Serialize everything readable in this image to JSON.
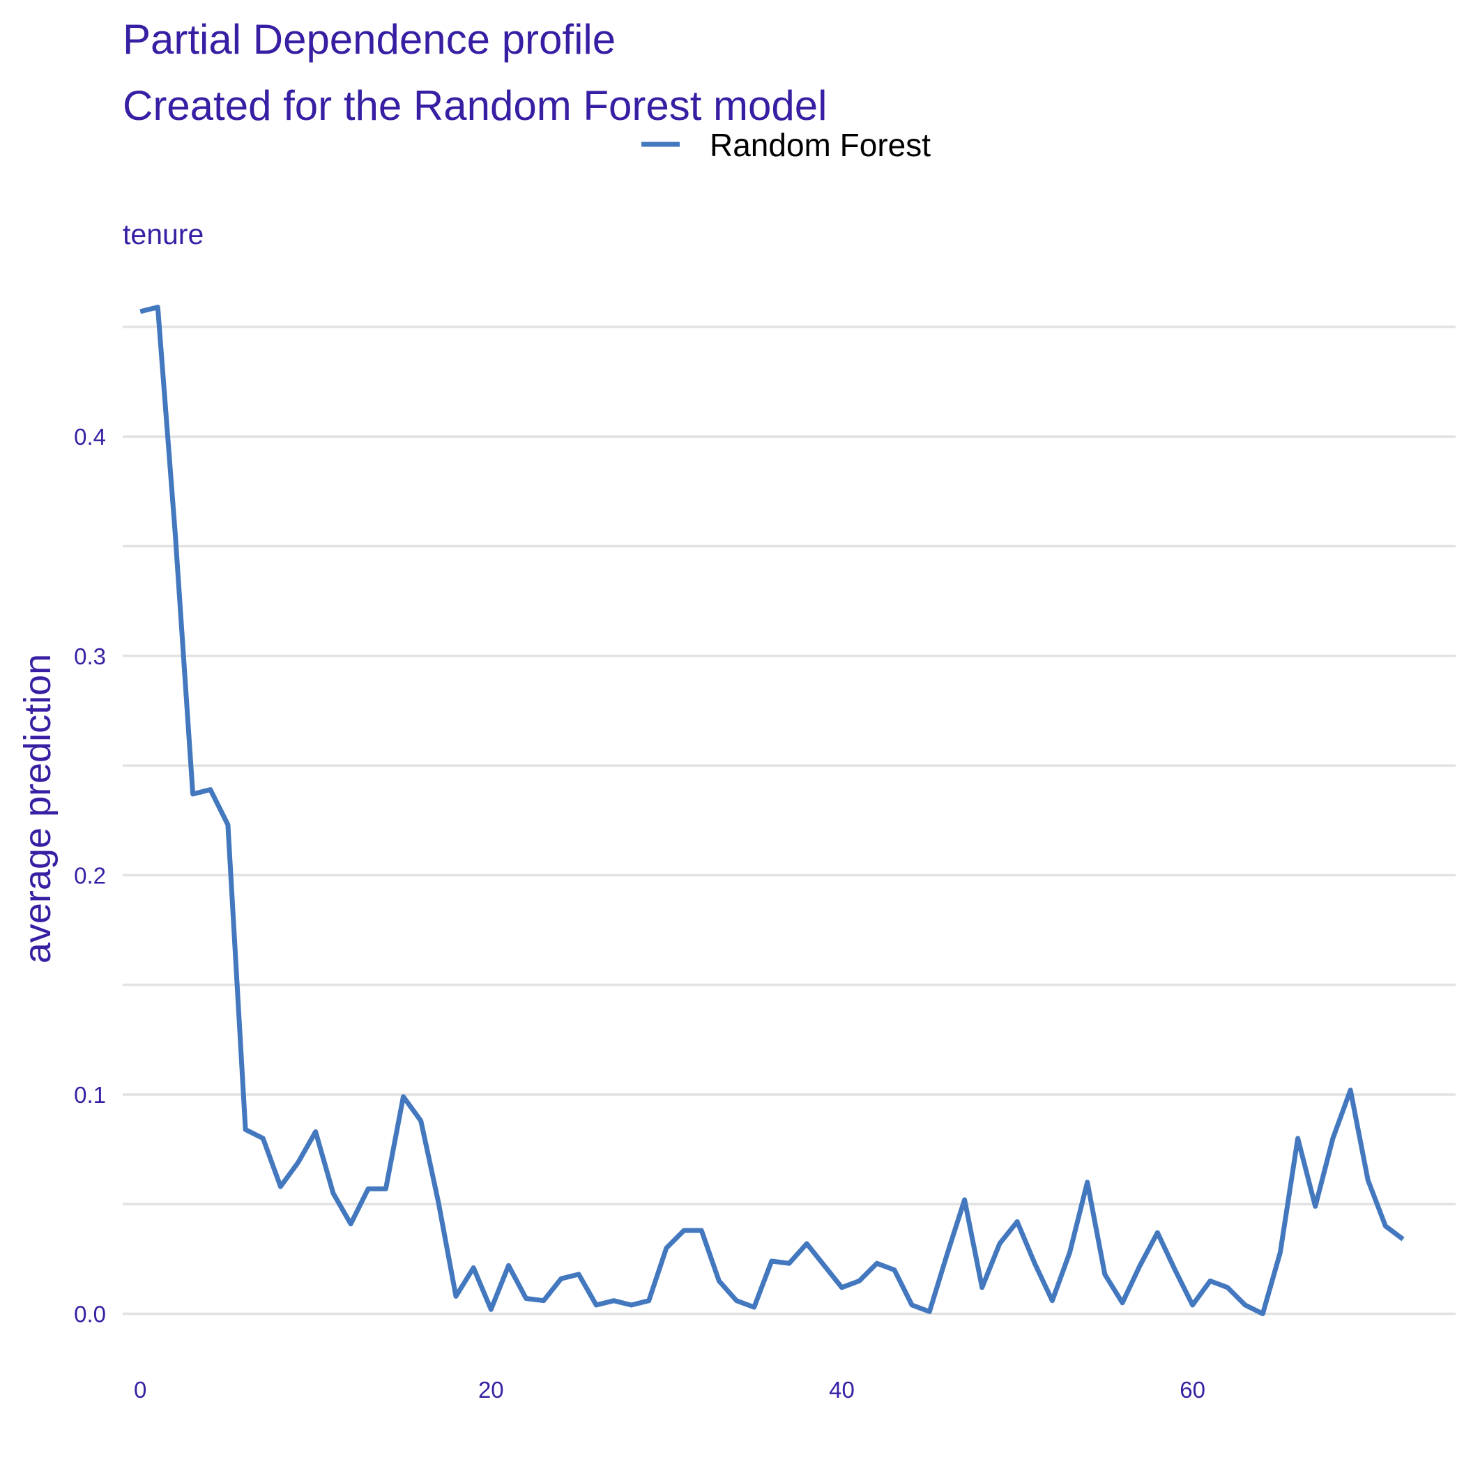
{
  "chart_data": {
    "type": "line",
    "title": "Partial Dependence profile",
    "subtitle": "Created for the Random Forest model",
    "facet_label": "tenure",
    "xlabel": "",
    "ylabel": "average prediction",
    "xlim": [
      -1,
      75
    ],
    "ylim": [
      -0.01,
      0.47
    ],
    "x_ticks": [
      0,
      20,
      40,
      60
    ],
    "y_ticks": [
      0.0,
      0.1,
      0.2,
      0.3,
      0.4
    ],
    "y_tick_labels": [
      "0.0",
      "0.1",
      "0.2",
      "0.3",
      "0.4"
    ],
    "grid": true,
    "legend": {
      "position": "top",
      "entries": [
        "Random Forest"
      ]
    },
    "colors": {
      "line": "#4378bf",
      "text": "#371ea3",
      "grid": "#e2e2e2"
    },
    "series": [
      {
        "name": "Random Forest",
        "x": [
          0,
          1,
          2,
          3,
          4,
          5,
          6,
          7,
          8,
          9,
          10,
          11,
          12,
          13,
          14,
          15,
          16,
          17,
          18,
          19,
          20,
          21,
          22,
          23,
          24,
          25,
          26,
          27,
          28,
          29,
          30,
          31,
          32,
          33,
          34,
          35,
          36,
          37,
          38,
          39,
          40,
          41,
          42,
          43,
          44,
          45,
          46,
          47,
          48,
          49,
          50,
          51,
          52,
          53,
          54,
          55,
          56,
          57,
          58,
          59,
          60,
          61,
          62,
          63,
          64,
          65,
          66,
          67,
          68,
          69,
          70,
          71,
          72
        ],
        "y": [
          0.457,
          0.459,
          0.355,
          0.237,
          0.239,
          0.223,
          0.084,
          0.08,
          0.058,
          0.069,
          0.083,
          0.055,
          0.041,
          0.057,
          0.057,
          0.099,
          0.088,
          0.051,
          0.008,
          0.021,
          0.002,
          0.022,
          0.007,
          0.006,
          0.016,
          0.018,
          0.004,
          0.006,
          0.004,
          0.006,
          0.03,
          0.038,
          0.038,
          0.015,
          0.006,
          0.003,
          0.024,
          0.023,
          0.032,
          0.022,
          0.012,
          0.015,
          0.023,
          0.02,
          0.004,
          0.001,
          0.027,
          0.052,
          0.012,
          0.032,
          0.042,
          0.023,
          0.006,
          0.028,
          0.06,
          0.018,
          0.005,
          0.022,
          0.037,
          0.02,
          0.004,
          0.015,
          0.012,
          0.004,
          0.0,
          0.028,
          0.08,
          0.049,
          0.08,
          0.102,
          0.061,
          0.04,
          0.034
        ]
      }
    ]
  }
}
